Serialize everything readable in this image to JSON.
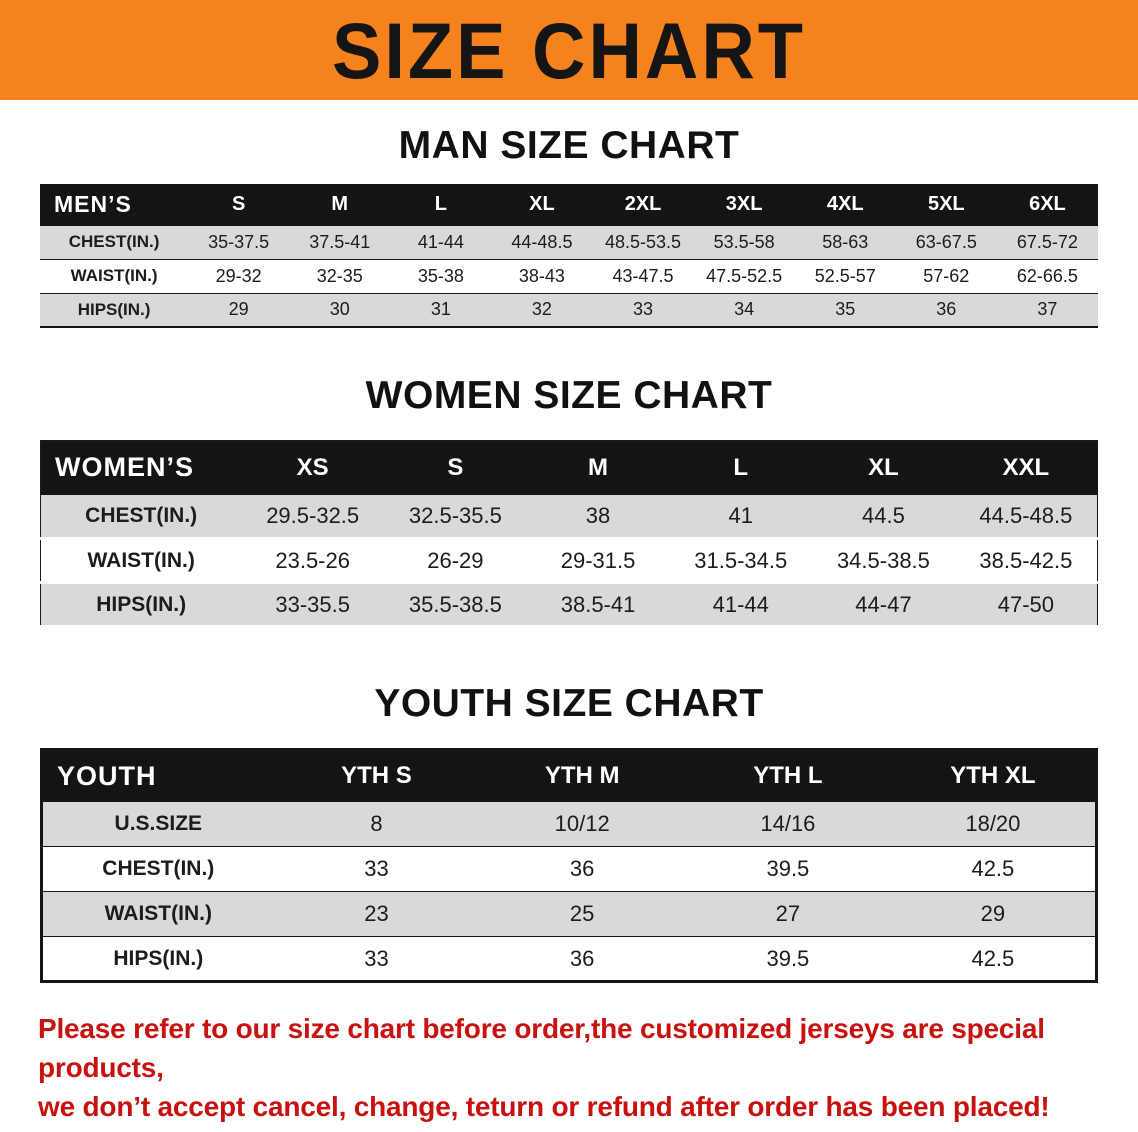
{
  "banner": {
    "title": "SIZE CHART"
  },
  "chart_data": [
    {
      "type": "table",
      "title": "MAN SIZE CHART",
      "corner": "MEN’S",
      "columns": [
        "S",
        "M",
        "L",
        "XL",
        "2XL",
        "3XL",
        "4XL",
        "5XL",
        "6XL"
      ],
      "rows": [
        {
          "label": "CHEST(IN.)",
          "values": [
            "35-37.5",
            "37.5-41",
            "41-44",
            "44-48.5",
            "48.5-53.5",
            "53.5-58",
            "58-63",
            "63-67.5",
            "67.5-72"
          ]
        },
        {
          "label": "WAIST(IN.)",
          "values": [
            "29-32",
            "32-35",
            "35-38",
            "38-43",
            "43-47.5",
            "47.5-52.5",
            "52.5-57",
            "57-62",
            "62-66.5"
          ]
        },
        {
          "label": "HIPS(IN.)",
          "values": [
            "29",
            "30",
            "31",
            "32",
            "33",
            "34",
            "35",
            "36",
            "37"
          ]
        }
      ]
    },
    {
      "type": "table",
      "title": "WOMEN SIZE CHART",
      "corner": "WOMEN’S",
      "columns": [
        "XS",
        "S",
        "M",
        "L",
        "XL",
        "XXL"
      ],
      "rows": [
        {
          "label": "CHEST(IN.)",
          "values": [
            "29.5-32.5",
            "32.5-35.5",
            "38",
            "41",
            "44.5",
            "44.5-48.5"
          ]
        },
        {
          "label": "WAIST(IN.)",
          "values": [
            "23.5-26",
            "26-29",
            "29-31.5",
            "31.5-34.5",
            "34.5-38.5",
            "38.5-42.5"
          ]
        },
        {
          "label": "HIPS(IN.)",
          "values": [
            "33-35.5",
            "35.5-38.5",
            "38.5-41",
            "41-44",
            "44-47",
            "47-50"
          ]
        }
      ]
    },
    {
      "type": "table",
      "title": "YOUTH SIZE CHART",
      "corner": "YOUTH",
      "columns": [
        "YTH S",
        "YTH M",
        "YTH L",
        "YTH XL"
      ],
      "rows": [
        {
          "label": "U.S.SIZE",
          "values": [
            "8",
            "10/12",
            "14/16",
            "18/20"
          ]
        },
        {
          "label": "CHEST(IN.)",
          "values": [
            "33",
            "36",
            "39.5",
            "42.5"
          ]
        },
        {
          "label": "WAIST(IN.)",
          "values": [
            "23",
            "25",
            "27",
            "29"
          ]
        },
        {
          "label": "HIPS(IN.)",
          "values": [
            "33",
            "36",
            "39.5",
            "42.5"
          ]
        }
      ]
    }
  ],
  "footer": {
    "line1": "Please refer to our size chart before order,the customized jerseys are special products,",
    "line2": "we don’t accept cancel, change, teturn or refund after order has been placed!"
  },
  "colors": {
    "banner_bg": "#f6821d",
    "header_bg": "#141414",
    "stripe": "#d9d9d9",
    "note": "#c8120f"
  }
}
